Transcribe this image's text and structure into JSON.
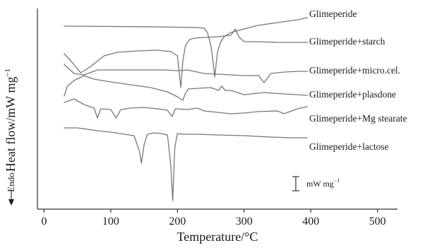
{
  "chart_data": {
    "type": "line",
    "title": "",
    "xlabel": "Temperature/°C",
    "ylabel": "Heat flow/mW mg",
    "ylabel_superscript": "−1",
    "endo_label": "Endo",
    "xlim": [
      -10,
      530
    ],
    "xticks": [
      0,
      100,
      200,
      300,
      400,
      500
    ],
    "grid": false,
    "legend_position": "right (labels beside curve ends)",
    "scale_bar": {
      "text": "mW mg",
      "superscript": "−1"
    },
    "series": [
      {
        "name": "Glimeperide",
        "x": [
          30,
          100,
          150,
          200,
          230,
          240,
          245,
          250,
          253,
          256,
          260,
          265,
          270,
          280,
          300,
          320,
          350,
          380,
          395
        ],
        "y": [
          33,
          33.5,
          33.8,
          34.5,
          35,
          36,
          42,
          60,
          80,
          105,
          70,
          55,
          48,
          42,
          37,
          32,
          28,
          24,
          21
        ]
      },
      {
        "name": "Glimeperide+starch",
        "x": [
          30,
          40,
          55,
          70,
          90,
          110,
          140,
          170,
          190,
          200,
          205,
          208,
          212,
          218,
          225,
          240,
          260,
          280,
          287,
          292,
          300,
          320,
          350,
          380,
          395
        ],
        "y": [
          72,
          82,
          99,
          90,
          75,
          70,
          68,
          67,
          69,
          75,
          120,
          83,
          60,
          52,
          50,
          49,
          48,
          46,
          37,
          48,
          55,
          55,
          56,
          56,
          56
        ]
      },
      {
        "name": "Glimeperide+micro.cel.",
        "x": [
          30,
          45,
          60,
          80,
          100,
          120,
          150,
          180,
          200,
          215,
          240,
          260,
          280,
          300,
          315,
          322,
          325,
          330,
          340,
          360,
          380,
          395
        ],
        "y": [
          87,
          100,
          102,
          95,
          95,
          95,
          95,
          95,
          96,
          95,
          100,
          101,
          102,
          103,
          103,
          103,
          107,
          113,
          100,
          98,
          97,
          97
        ]
      },
      {
        "name": "Glimeperide+plasdone",
        "x": [
          30,
          35,
          45,
          60,
          75,
          100,
          130,
          160,
          185,
          200,
          208,
          212,
          216,
          230,
          250,
          262,
          266,
          272,
          280,
          300,
          330,
          360,
          380,
          395
        ],
        "y": [
          132,
          118,
          110,
          103,
          108,
          112,
          116,
          120,
          126,
          133,
          138,
          128,
          122,
          121,
          120,
          124,
          118,
          124,
          124,
          130,
          127,
          129,
          130,
          131
        ]
      },
      {
        "name": "Glimeperide+Mg stearate",
        "x": [
          30,
          45,
          60,
          75,
          80,
          85,
          100,
          108,
          115,
          130,
          150,
          170,
          185,
          192,
          197,
          215,
          230,
          240,
          260,
          280,
          300,
          320,
          350,
          360,
          380,
          395
        ],
        "y": [
          141,
          136,
          144,
          149,
          163,
          150,
          151,
          163,
          151,
          149,
          148,
          150,
          152,
          161,
          150,
          151,
          149,
          153,
          155,
          157,
          156,
          154,
          153,
          157,
          150,
          147
        ]
      },
      {
        "name": "Glimeperide+lactose",
        "x": [
          30,
          50,
          80,
          100,
          120,
          135,
          143,
          146,
          150,
          155,
          165,
          175,
          185,
          190,
          193,
          196,
          200,
          210,
          230,
          260,
          300,
          340,
          370,
          395
        ],
        "y": [
          177,
          177,
          181,
          183,
          186,
          188,
          210,
          227,
          201,
          186,
          184,
          185,
          187,
          230,
          280,
          205,
          185,
          186,
          186,
          187,
          188,
          190,
          191,
          191
        ]
      }
    ]
  }
}
